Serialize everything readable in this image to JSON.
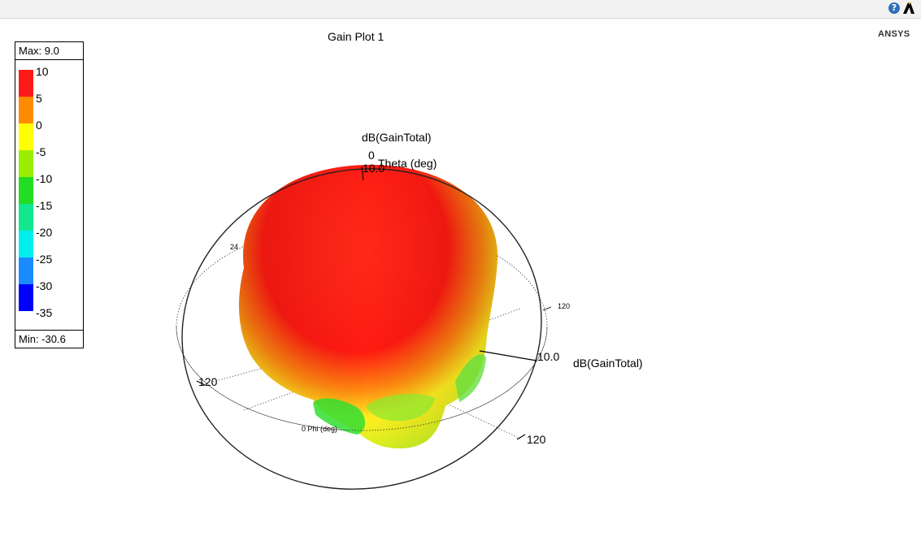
{
  "header": {
    "help_icon_label": "?",
    "wordmark": "ANSYS"
  },
  "plot": {
    "title": "Gain Plot 1",
    "legend": {
      "max_label": "Max: 9.0",
      "min_label": "Min: -30.6",
      "ticks": [
        "10",
        "5",
        "0",
        "-5",
        "-10",
        "-15",
        "-20",
        "-25",
        "-30",
        "-35"
      ],
      "colors": [
        "#ff1a1a",
        "#ff8c00",
        "#ffff00",
        "#99ee00",
        "#22dd22",
        "#11e890",
        "#00eeee",
        "#1a8cff",
        "#0000ff"
      ]
    },
    "axes": {
      "theta_zero": "0",
      "theta_value": "10.0",
      "theta_label": "Theta (deg)",
      "z_quantity": "dB(GainTotal)",
      "right_value": "10.0",
      "right_quantity": "dB(GainTotal)",
      "left_tick": "120",
      "bottom_tick": "120",
      "ring_right_tick": "120",
      "ring_left_tick": "24",
      "phi_label": "0  Phi (deg)"
    }
  }
}
